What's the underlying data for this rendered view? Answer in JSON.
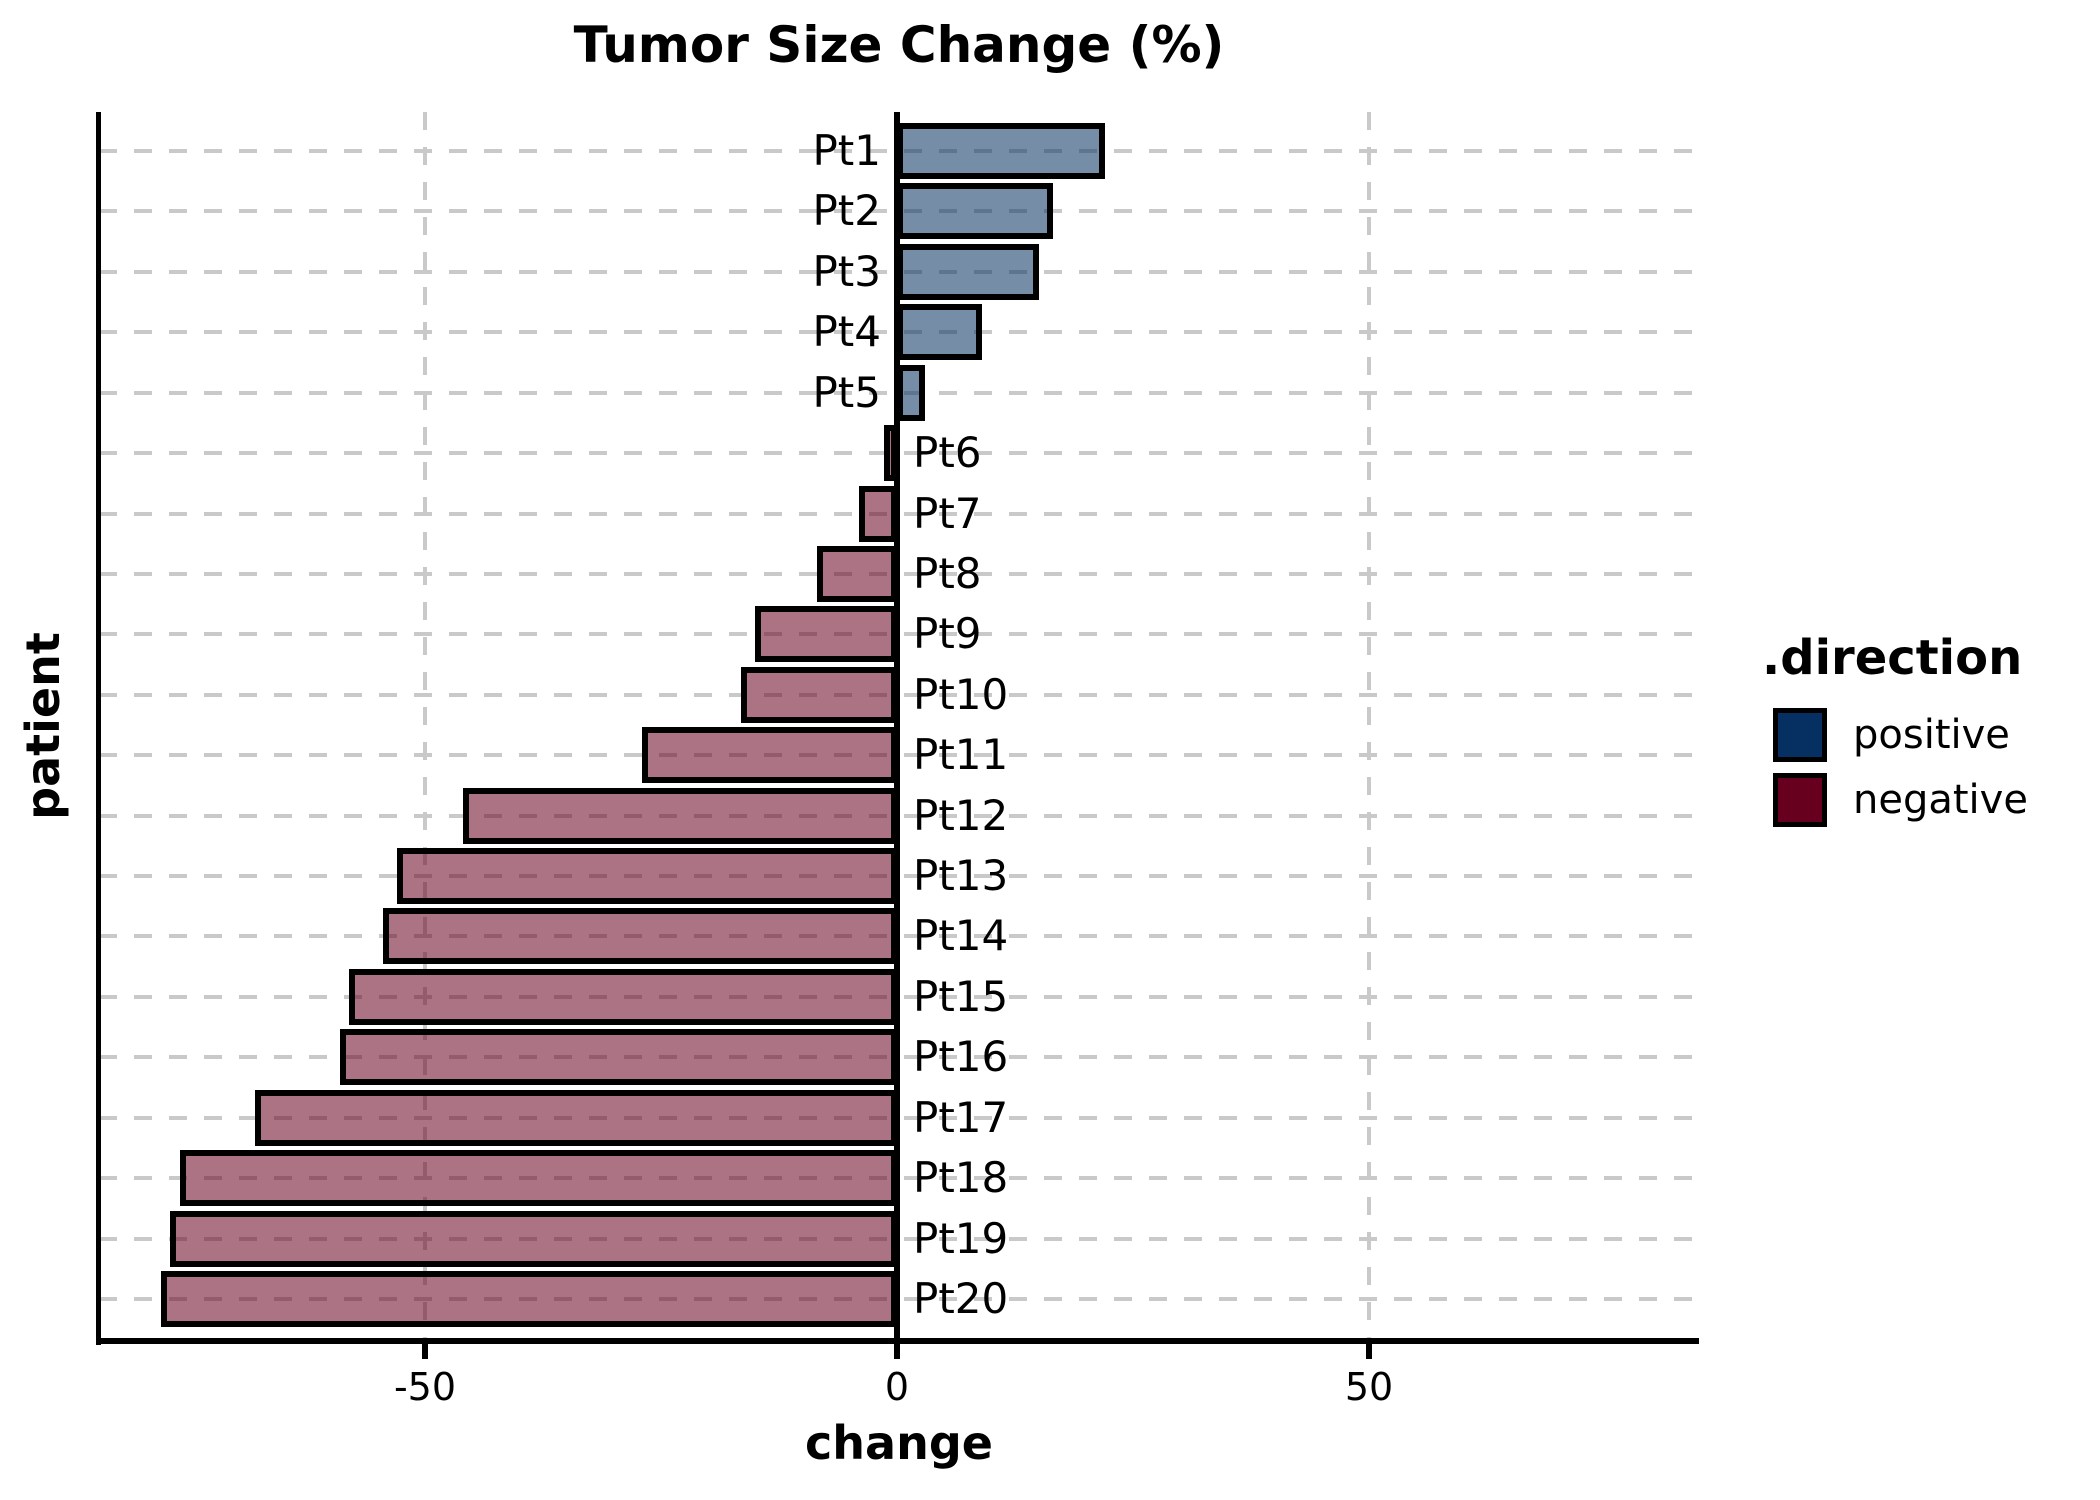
{
  "title": "Tumor Size Change (%)",
  "chart_data": {
    "type": "bar",
    "orientation": "horizontal",
    "title": "Tumor Size Change (%)",
    "xlabel": "change",
    "ylabel": "patient",
    "categories": [
      "Pt1",
      "Pt2",
      "Pt3",
      "Pt4",
      "Pt5",
      "Pt6",
      "Pt7",
      "Pt8",
      "Pt9",
      "Pt10",
      "Pt11",
      "Pt12",
      "Pt13",
      "Pt14",
      "Pt15",
      "Pt16",
      "Pt17",
      "Pt18",
      "Pt19",
      "Pt20"
    ],
    "values": [
      22,
      16.5,
      15,
      9,
      3,
      -1,
      -4,
      -8.5,
      -15,
      -16.5,
      -27,
      -46,
      -53,
      -54.5,
      -58,
      -59,
      -68,
      -76,
      -77,
      -78
    ],
    "directions": [
      "positive",
      "positive",
      "positive",
      "positive",
      "positive",
      "negative",
      "negative",
      "negative",
      "negative",
      "negative",
      "negative",
      "negative",
      "negative",
      "negative",
      "negative",
      "negative",
      "negative",
      "negative",
      "negative",
      "negative"
    ],
    "x_ticks": [
      -50,
      0,
      50
    ],
    "xlim": [
      -84.5,
      85
    ],
    "grid": {
      "horizontal": "dashed line per patient row",
      "vertical_at": [
        -50,
        50
      ],
      "style": "dashed",
      "color": "#c9c9c9"
    },
    "zero_reference_line": true,
    "legend": {
      "title": ".direction",
      "position": "right",
      "entries": [
        {
          "label": "positive",
          "color": "#053061"
        },
        {
          "label": "negative",
          "color": "#67001f"
        }
      ]
    }
  },
  "colors": {
    "positive_key": "#053061",
    "negative_key": "#67001f",
    "positive_bar_fill": "rgba(5,48,97,0.55)",
    "negative_bar_fill": "rgba(103,0,31,0.55)",
    "bar_border": "#000000",
    "gridline": "#c9c9c9",
    "axis": "#000000",
    "background": "#ffffff"
  }
}
